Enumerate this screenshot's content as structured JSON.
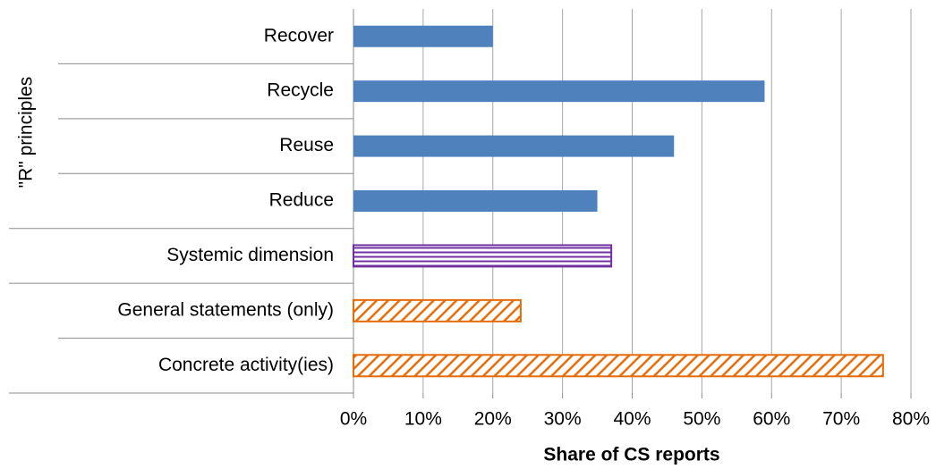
{
  "chart_data": {
    "type": "barh",
    "xlabel": "Share of CS reports",
    "group_label": "\"R\" principles",
    "categories": [
      "Recover",
      "Recycle",
      "Reuse",
      "Reduce",
      "Systemic dimension",
      "General statements (only)",
      "Concrete activity(ies)"
    ],
    "values": [
      20,
      59,
      46,
      35,
      37,
      24,
      76
    ],
    "colors": [
      "#4f81bd",
      "#4f81bd",
      "#4f81bd",
      "#4f81bd",
      "#7030a0",
      "#e36c09",
      "#e36c09"
    ],
    "patterns": [
      "solid",
      "solid",
      "solid",
      "solid",
      "horizontal",
      "diagonal",
      "diagonal"
    ],
    "xlim": [
      0,
      80
    ],
    "xticks": [
      {
        "value": 0,
        "label": "0%"
      },
      {
        "value": 10,
        "label": "10%"
      },
      {
        "value": 20,
        "label": "20%"
      },
      {
        "value": 30,
        "label": "30%"
      },
      {
        "value": 40,
        "label": "40%"
      },
      {
        "value": 50,
        "label": "50%"
      },
      {
        "value": 60,
        "label": "60%"
      },
      {
        "value": 70,
        "label": "70%"
      },
      {
        "value": 80,
        "label": "80%"
      }
    ],
    "grid": true
  }
}
